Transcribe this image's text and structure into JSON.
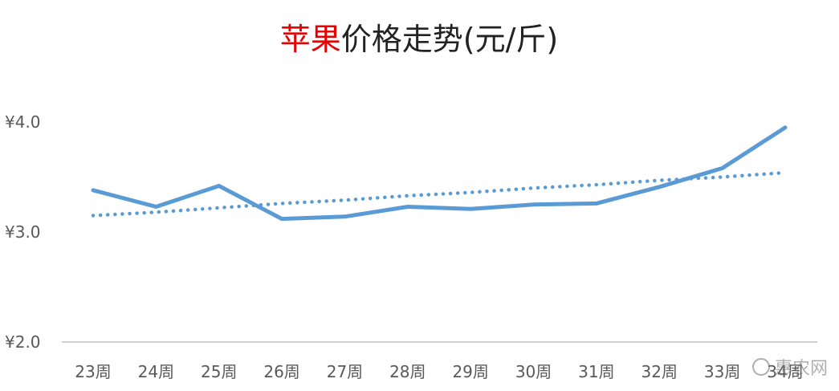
{
  "chart_data": {
    "type": "line",
    "title_highlight": "苹果",
    "title_rest": "价格走势(元/斤)",
    "categories": [
      "23周",
      "24周",
      "25周",
      "26周",
      "27周",
      "28周",
      "29周",
      "30周",
      "31周",
      "32周",
      "33周",
      "34周"
    ],
    "series": [
      {
        "values": [
          3.38,
          3.23,
          3.42,
          3.12,
          3.14,
          3.23,
          3.21,
          3.25,
          3.26,
          3.41,
          3.58,
          3.95
        ],
        "color": "#5b9bd5",
        "style": "solid"
      },
      {
        "values": [
          3.15,
          3.18,
          3.22,
          3.26,
          3.29,
          3.33,
          3.36,
          3.4,
          3.43,
          3.47,
          3.5,
          3.54
        ],
        "color": "#5b9bd5",
        "style": "dotted"
      }
    ],
    "yticks": [
      2.0,
      3.0,
      4.0
    ],
    "ytick_labels": [
      "¥2.0",
      "¥3.0",
      "¥4.0"
    ],
    "ylim": [
      2.0,
      4.0
    ],
    "grid": false,
    "legend": "none"
  },
  "watermark": {
    "text": "惠农网"
  }
}
